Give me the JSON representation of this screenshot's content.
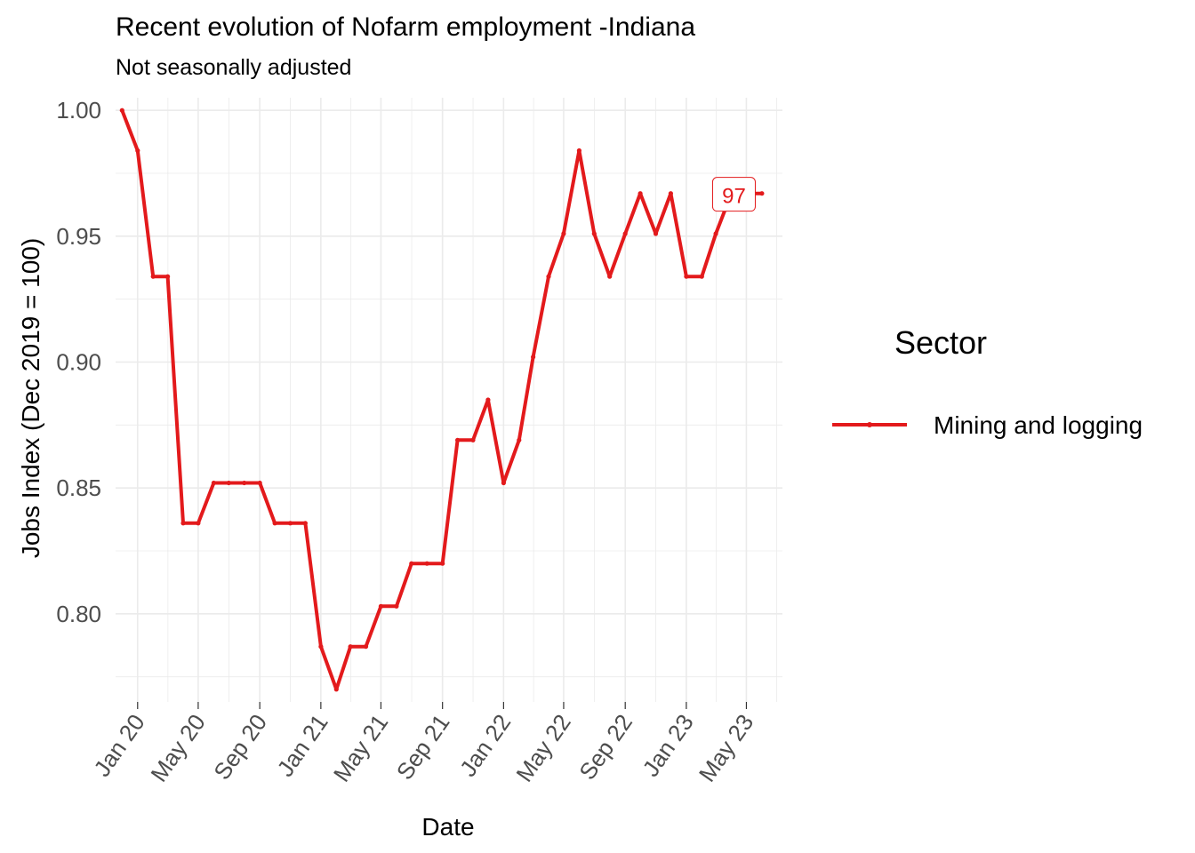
{
  "chart_data": {
    "type": "line",
    "title": "Recent evolution of Nofarm employment -Indiana",
    "subtitle": "Not seasonally adjusted",
    "xlabel": "Date",
    "ylabel": "Jobs Index (Dec 2019 = 100)",
    "x_tick_labels": [
      "Jan 20",
      "May 20",
      "Sep 20",
      "Jan 21",
      "May 21",
      "Sep 21",
      "Jan 22",
      "May 22",
      "Sep 22",
      "Jan 23",
      "May 23"
    ],
    "y_tick_labels": [
      "0.80",
      "0.85",
      "0.90",
      "0.95",
      "1.00"
    ],
    "ylim": [
      0.765,
      1.005
    ],
    "xlim": [
      "2019-11-18",
      "2023-07-12"
    ],
    "grid": true,
    "legend_title": "Sector",
    "legend_position": "right",
    "end_label": "97",
    "colors": {
      "series": "#e31a1c",
      "grid": "#ebebeb",
      "tick_text": "#4d4d4d"
    },
    "x": [
      "2019-12",
      "2020-01",
      "2020-02",
      "2020-03",
      "2020-04",
      "2020-05",
      "2020-06",
      "2020-07",
      "2020-08",
      "2020-09",
      "2020-10",
      "2020-11",
      "2020-12",
      "2021-01",
      "2021-02",
      "2021-03",
      "2021-04",
      "2021-05",
      "2021-06",
      "2021-07",
      "2021-08",
      "2021-09",
      "2021-10",
      "2021-11",
      "2021-12",
      "2022-01",
      "2022-02",
      "2022-03",
      "2022-04",
      "2022-05",
      "2022-06",
      "2022-07",
      "2022-08",
      "2022-09",
      "2022-10",
      "2022-11",
      "2022-12",
      "2023-01",
      "2023-02",
      "2023-03",
      "2023-04",
      "2023-05",
      "2023-06"
    ],
    "series": [
      {
        "name": "Mining and logging",
        "values": [
          1.0,
          0.984,
          0.934,
          0.934,
          0.836,
          0.836,
          0.852,
          0.852,
          0.852,
          0.852,
          0.836,
          0.836,
          0.836,
          0.787,
          0.77,
          0.787,
          0.787,
          0.803,
          0.803,
          0.82,
          0.82,
          0.82,
          0.869,
          0.869,
          0.885,
          0.852,
          0.869,
          0.902,
          0.934,
          0.951,
          0.984,
          0.951,
          0.934,
          0.951,
          0.967,
          0.951,
          0.967,
          0.934,
          0.934,
          0.951,
          0.967,
          0.967,
          0.967
        ]
      }
    ]
  }
}
